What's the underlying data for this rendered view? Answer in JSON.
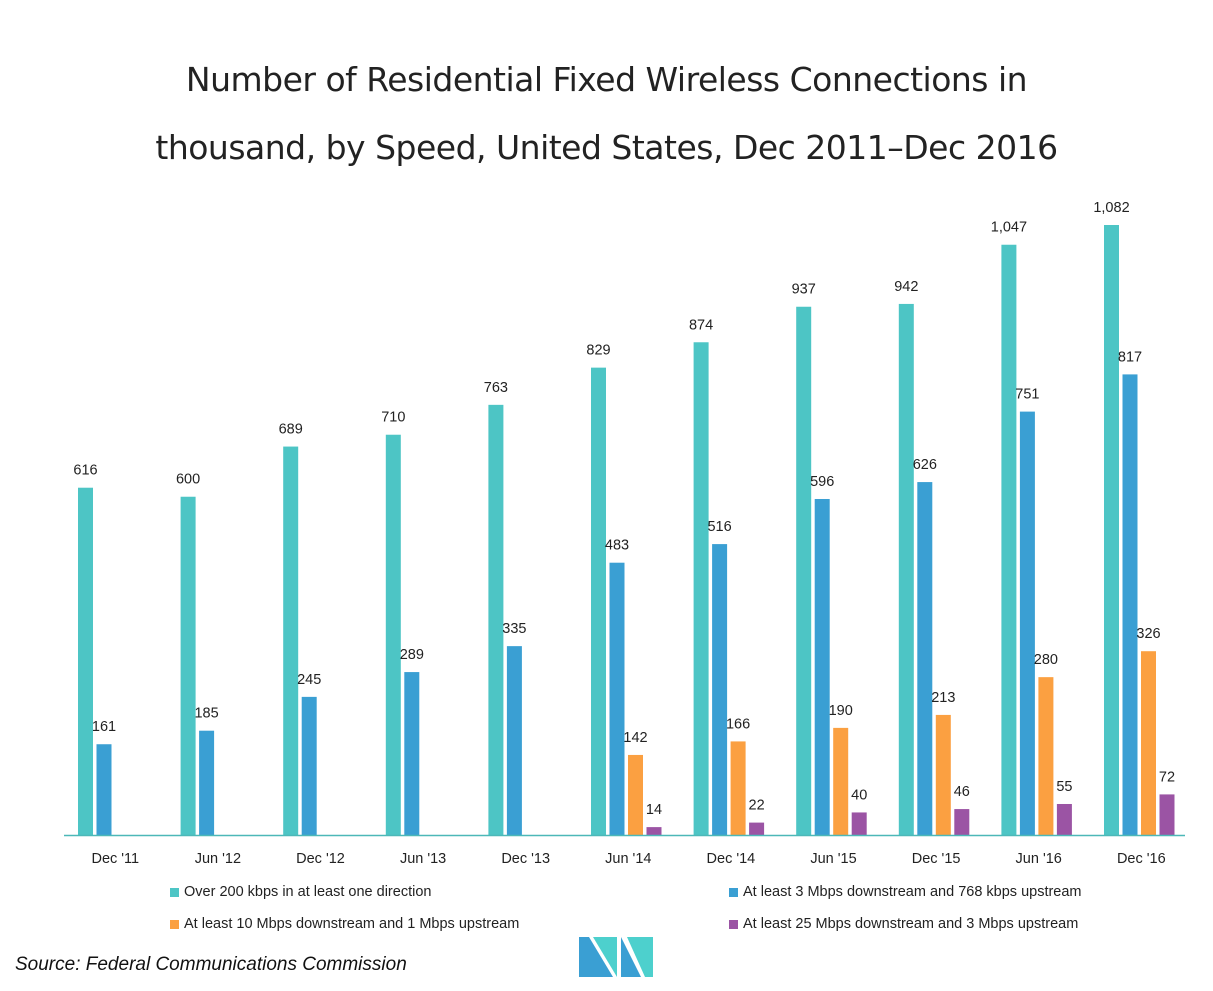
{
  "colors": {
    "series": [
      "#4dc5c5",
      "#3a9fd3",
      "#fba041",
      "#9b54a4"
    ],
    "axis": "#4cb8b8",
    "logo_left": "#3a9fd3",
    "logo_right": "#4dd0cd"
  },
  "source": "Source: Federal Communications Commission",
  "chart_data": {
    "type": "bar",
    "title": "Number of Residential Fixed Wireless Connections in thousand, by Speed, United States, Dec 2011–Dec 2016",
    "title_lines": [
      "Number of Residential Fixed Wireless Connections in",
      "thousand, by Speed, United States, Dec 2011–Dec 2016"
    ],
    "categories": [
      "Dec '11",
      "Jun '12",
      "Dec '12",
      "Jun '13",
      "Dec '13",
      "Jun '14",
      "Dec '14",
      "Jun '15",
      "Dec '15",
      "Jun '16",
      "Dec '16"
    ],
    "series": [
      {
        "name": "Over 200 kbps in at least one direction",
        "values": [
          616,
          600,
          689,
          710,
          763,
          829,
          874,
          937,
          942,
          1047,
          1082
        ],
        "labels": [
          "616",
          "600",
          "689",
          "710",
          "763",
          "829",
          "874",
          "937",
          "942",
          "1,047",
          "1,082"
        ]
      },
      {
        "name": "At least 3 Mbps downstream and 768 kbps upstream",
        "values": [
          161,
          185,
          245,
          289,
          335,
          483,
          516,
          596,
          626,
          751,
          817
        ],
        "labels": [
          "161",
          "185",
          "245",
          "289",
          "335",
          "483",
          "516",
          "596",
          "626",
          "751",
          "817"
        ]
      },
      {
        "name": "At least 10 Mbps downstream and 1 Mbps upstream",
        "values": [
          null,
          null,
          null,
          null,
          null,
          142,
          166,
          190,
          213,
          280,
          326
        ],
        "labels": [
          null,
          null,
          null,
          null,
          null,
          "142",
          "166",
          "190",
          "213",
          "280",
          "326"
        ]
      },
      {
        "name": "At least 25 Mbps downstream and 3 Mbps upstream",
        "values": [
          null,
          null,
          null,
          null,
          null,
          14,
          22,
          40,
          46,
          55,
          72
        ],
        "labels": [
          null,
          null,
          null,
          null,
          null,
          "14",
          "22",
          "40",
          "46",
          "55",
          "72"
        ]
      }
    ],
    "xlabel": "",
    "ylabel": "",
    "ylim": [
      0,
      1100
    ],
    "grid": false,
    "legend_position": "bottom"
  }
}
